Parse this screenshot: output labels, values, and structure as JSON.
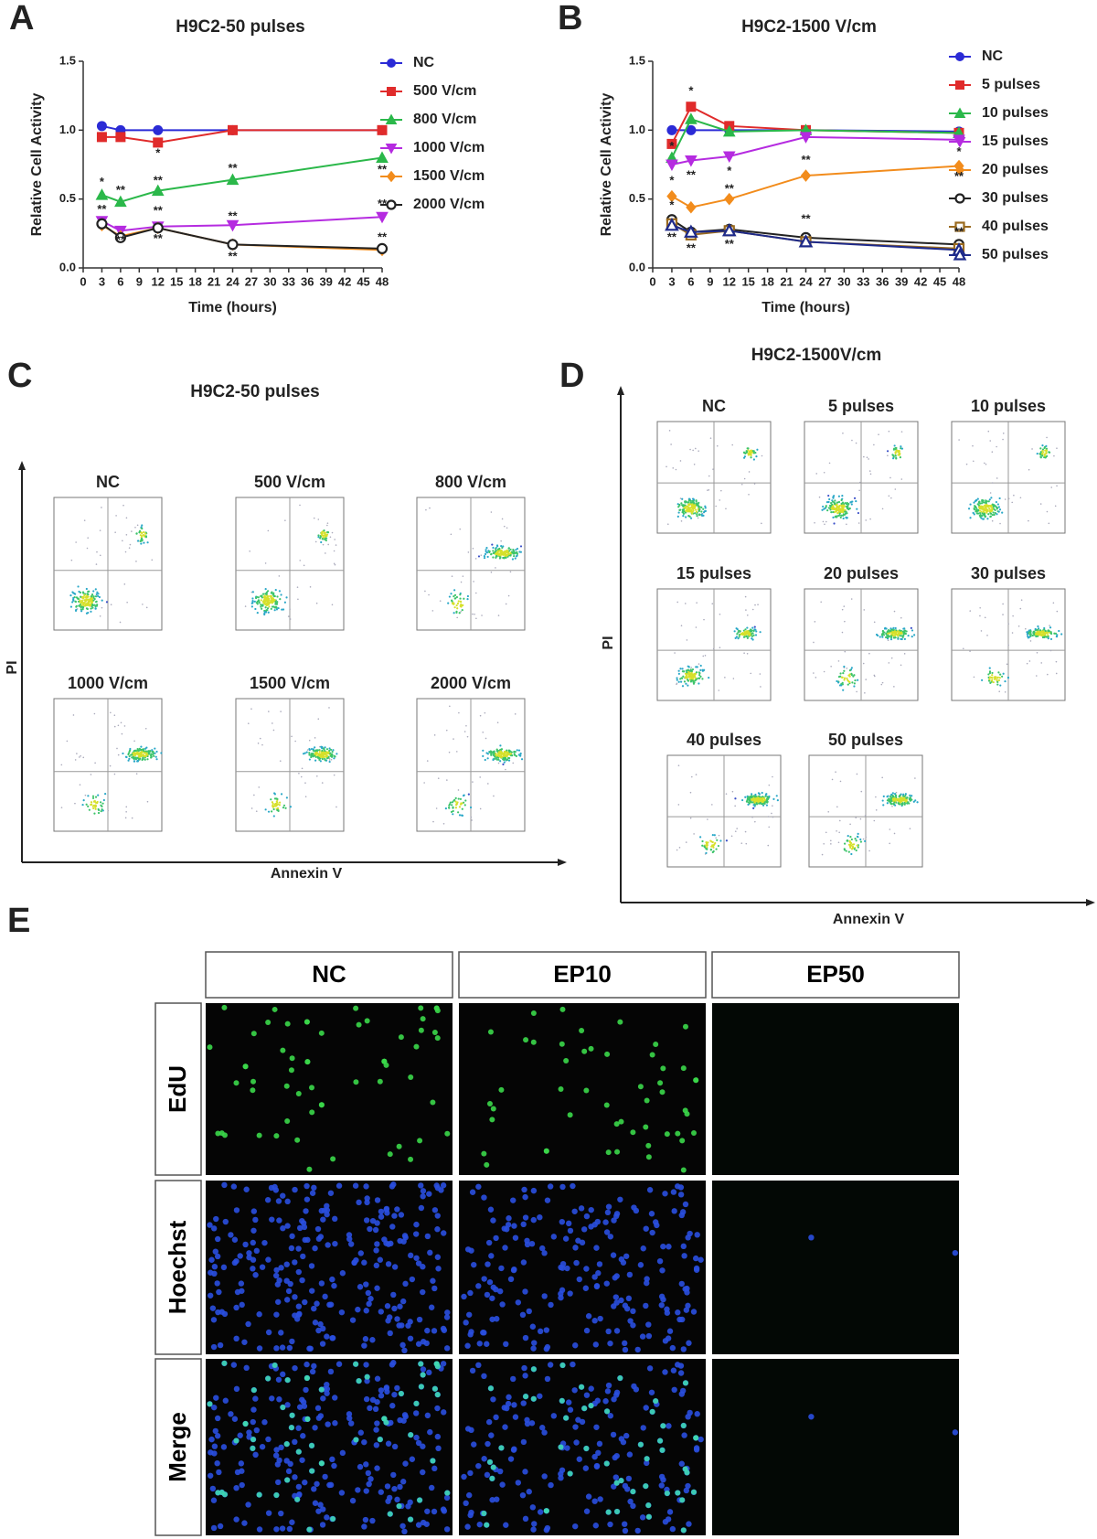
{
  "chart_data": [
    {
      "type": "line",
      "panel_label": "A",
      "title": "H9C2-50 pulses",
      "x_label": "Time (hours)",
      "y_label": "Relative  Cell Activity",
      "x": [
        3,
        6,
        12,
        24,
        48
      ],
      "xlim": [
        0,
        48
      ],
      "xticks": [
        0,
        3,
        6,
        9,
        12,
        15,
        18,
        21,
        24,
        27,
        30,
        33,
        36,
        39,
        42,
        45,
        48
      ],
      "ylim": [
        0,
        1.5
      ],
      "yticks": [
        {
          "value": 0,
          "label": "0.0"
        },
        0.5,
        {
          "value": 1,
          "label": "1.0"
        },
        1.5
      ],
      "legend": "right",
      "series": [
        {
          "name": "NC",
          "color": "#2b2bd6",
          "marker": "circle",
          "values": [
            1.03,
            1.0,
            1.0,
            1.0,
            1.0
          ]
        },
        {
          "name": "500 V/cm",
          "color": "#e02b2b",
          "marker": "square",
          "values": [
            0.95,
            0.95,
            0.91,
            1.0,
            1.0
          ]
        },
        {
          "name": "800 V/cm",
          "color": "#2bb84a",
          "marker": "triangle-up",
          "values": [
            0.53,
            0.48,
            0.56,
            0.64,
            0.8
          ]
        },
        {
          "name": "1000 V/cm",
          "color": "#b52be0",
          "marker": "triangle-down",
          "values": [
            0.34,
            0.27,
            0.3,
            0.31,
            0.37
          ]
        },
        {
          "name": "1500 V/cm",
          "color": "#f28c1c",
          "marker": "diamond",
          "values": [
            0.31,
            0.23,
            0.29,
            0.17,
            0.13
          ]
        },
        {
          "name": "2000 V/cm",
          "color": "#222222",
          "marker": "open-circle",
          "values": [
            0.32,
            0.22,
            0.29,
            0.17,
            0.14
          ]
        }
      ],
      "annotations": [
        {
          "x": 3,
          "y": 0.62,
          "text": "*"
        },
        {
          "x": 3,
          "y": 0.42,
          "text": "**"
        },
        {
          "x": 6,
          "y": 0.56,
          "text": "**"
        },
        {
          "x": 6,
          "y": 0.2,
          "text": "**"
        },
        {
          "x": 12,
          "y": 0.83,
          "text": "*"
        },
        {
          "x": 12,
          "y": 0.63,
          "text": "**"
        },
        {
          "x": 12,
          "y": 0.41,
          "text": "**"
        },
        {
          "x": 12,
          "y": 0.21,
          "text": "**"
        },
        {
          "x": 24,
          "y": 0.72,
          "text": "**"
        },
        {
          "x": 24,
          "y": 0.37,
          "text": "**"
        },
        {
          "x": 24,
          "y": 0.08,
          "text": "**"
        },
        {
          "x": 48,
          "y": 0.71,
          "text": "**"
        },
        {
          "x": 48,
          "y": 0.46,
          "text": "**"
        },
        {
          "x": 48,
          "y": 0.22,
          "text": "**"
        }
      ]
    },
    {
      "type": "line",
      "panel_label": "B",
      "title": "H9C2-1500 V/cm",
      "x_label": "Time (hours)",
      "y_label": "Relative  Cell Activity",
      "x": [
        3,
        6,
        12,
        24,
        48
      ],
      "xlim": [
        0,
        48
      ],
      "xticks": [
        0,
        3,
        6,
        9,
        12,
        15,
        18,
        21,
        24,
        27,
        30,
        33,
        36,
        39,
        42,
        45,
        48
      ],
      "ylim": [
        0,
        1.5
      ],
      "yticks": [
        {
          "value": 0,
          "label": "0.0"
        },
        0.5,
        {
          "value": 1,
          "label": "1.0"
        },
        1.5
      ],
      "legend": "right",
      "series": [
        {
          "name": "NC",
          "color": "#2b2bd6",
          "marker": "circle",
          "values": [
            1.0,
            1.0,
            1.0,
            1.0,
            0.99
          ]
        },
        {
          "name": "5 pulses",
          "color": "#e02b2b",
          "marker": "square",
          "values": [
            0.9,
            1.17,
            1.03,
            1.0,
            0.98
          ]
        },
        {
          "name": "10 pulses",
          "color": "#2bb84a",
          "marker": "triangle-up",
          "values": [
            0.8,
            1.08,
            0.99,
            1.0,
            0.98
          ]
        },
        {
          "name": "15 pulses",
          "color": "#b52be0",
          "marker": "triangle-down",
          "values": [
            0.75,
            0.78,
            0.81,
            0.95,
            0.93
          ]
        },
        {
          "name": "20 pulses",
          "color": "#f28c1c",
          "marker": "diamond",
          "values": [
            0.52,
            0.44,
            0.5,
            0.67,
            0.74
          ]
        },
        {
          "name": "30 pulses",
          "color": "#222222",
          "marker": "open-circle",
          "values": [
            0.35,
            0.26,
            0.28,
            0.22,
            0.17
          ]
        },
        {
          "name": "40 pulses",
          "color": "#9a6a1e",
          "marker": "open-square",
          "values": [
            0.32,
            0.24,
            0.27,
            0.19,
            0.14
          ]
        },
        {
          "name": "50 pulses",
          "color": "#1e2a8a",
          "marker": "open-triangle",
          "values": [
            0.31,
            0.26,
            0.27,
            0.19,
            0.13
          ]
        }
      ],
      "annotations": [
        {
          "x": 3,
          "y": 0.88,
          "text": "*"
        },
        {
          "x": 3,
          "y": 0.63,
          "text": "*"
        },
        {
          "x": 3,
          "y": 0.45,
          "text": "*"
        },
        {
          "x": 3,
          "y": 0.22,
          "text": "**"
        },
        {
          "x": 6,
          "y": 1.28,
          "text": "*"
        },
        {
          "x": 6,
          "y": 0.67,
          "text": "**"
        },
        {
          "x": 6,
          "y": 0.14,
          "text": "**"
        },
        {
          "x": 12,
          "y": 0.7,
          "text": "*"
        },
        {
          "x": 12,
          "y": 0.57,
          "text": "**"
        },
        {
          "x": 12,
          "y": 0.17,
          "text": "**"
        },
        {
          "x": 24,
          "y": 0.78,
          "text": "**"
        },
        {
          "x": 24,
          "y": 0.35,
          "text": "**"
        },
        {
          "x": 48,
          "y": 0.84,
          "text": "*"
        },
        {
          "x": 48,
          "y": 0.66,
          "text": "**"
        },
        {
          "x": 48,
          "y": 0.26,
          "text": "**"
        }
      ]
    }
  ],
  "panel_c": {
    "letter": "C",
    "title": "H9C2-50 pulses",
    "y_label": "PI",
    "x_label": "Annexin V",
    "plots": [
      "NC",
      "500 V/cm",
      "800 V/cm",
      "1000 V/cm",
      "1500 V/cm",
      "2000 V/cm"
    ]
  },
  "panel_d": {
    "letter": "D",
    "title": "H9C2-1500V/cm",
    "y_label": "PI",
    "x_label": "Annexin V",
    "plots": [
      "NC",
      "5 pulses",
      "10 pulses",
      "15 pulses",
      "20 pulses",
      "30 pulses",
      "40 pulses",
      "50 pulses"
    ]
  },
  "panel_e": {
    "letter": "E",
    "columns": [
      "NC",
      "EP10",
      "EP50"
    ],
    "rows": [
      "EdU",
      "Hoechst",
      "Merge"
    ]
  }
}
